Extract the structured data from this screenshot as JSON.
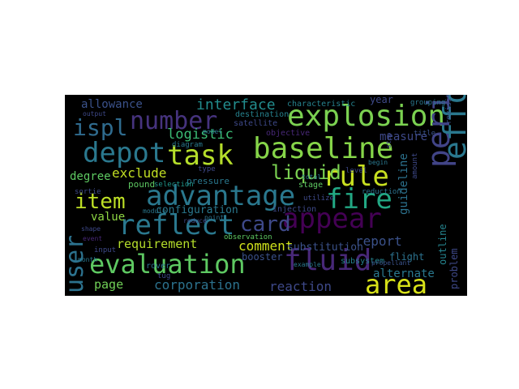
{
  "wordcloud": {
    "background": "#000000",
    "words": [
      {
        "text": "explosion",
        "color": "#7bd151"
      },
      {
        "text": "baseline",
        "color": "#86d549"
      },
      {
        "text": "depot",
        "color": "#2a788e"
      },
      {
        "text": "task",
        "color": "#b5de2b"
      },
      {
        "text": "period",
        "color": "#414487"
      },
      {
        "text": "effort",
        "color": "#2a788e"
      },
      {
        "text": "number",
        "color": "#46337e"
      },
      {
        "text": "ispl",
        "color": "#2f6b8e"
      },
      {
        "text": "rule",
        "color": "#c8e020"
      },
      {
        "text": "fire",
        "color": "#22a884"
      },
      {
        "text": "liquid",
        "color": "#7ad151"
      },
      {
        "text": "advantage",
        "color": "#2a788e"
      },
      {
        "text": "item",
        "color": "#bddf26"
      },
      {
        "text": "reflect",
        "color": "#2a788e"
      },
      {
        "text": "appear",
        "color": "#440154"
      },
      {
        "text": "card",
        "color": "#3e4989"
      },
      {
        "text": "evaluation",
        "color": "#5ec962"
      },
      {
        "text": "fluid",
        "color": "#482878"
      },
      {
        "text": "area",
        "color": "#d8e219"
      },
      {
        "text": "user",
        "color": "#2c728e"
      },
      {
        "text": "interface",
        "color": "#228c8d"
      },
      {
        "text": "allowance",
        "color": "#3b528b"
      },
      {
        "text": "logistic",
        "color": "#3bbb75"
      },
      {
        "text": "exclude",
        "color": "#c2df23"
      },
      {
        "text": "degree",
        "color": "#5ec962"
      },
      {
        "text": "configuration",
        "color": "#2a788e"
      },
      {
        "text": "value",
        "color": "#8fd744"
      },
      {
        "text": "requirement",
        "color": "#b5de2b"
      },
      {
        "text": "comment",
        "color": "#d0e11c"
      },
      {
        "text": "report",
        "color": "#3b528b"
      },
      {
        "text": "measure",
        "color": "#3e4989"
      },
      {
        "text": "guideline",
        "color": "#2c728e"
      },
      {
        "text": "page",
        "color": "#70cf57"
      },
      {
        "text": "corporation",
        "color": "#2c728e"
      },
      {
        "text": "reaction",
        "color": "#3e4989"
      },
      {
        "text": "alternate",
        "color": "#2a788e"
      },
      {
        "text": "substitution",
        "color": "#3b528b"
      },
      {
        "text": "problem",
        "color": "#3e4989"
      },
      {
        "text": "outline",
        "color": "#25848e"
      },
      {
        "text": "pound",
        "color": "#5ec962"
      },
      {
        "text": "year",
        "color": "#3e4989"
      },
      {
        "text": "characteristic",
        "color": "#26828e"
      },
      {
        "text": "destination",
        "color": "#26828e"
      },
      {
        "text": "satellite",
        "color": "#3e4989"
      },
      {
        "text": "objective",
        "color": "#482878"
      },
      {
        "text": "flight",
        "color": "#2c728e"
      },
      {
        "text": "booster",
        "color": "#3b528b"
      },
      {
        "text": "pressure",
        "color": "#2a788e"
      },
      {
        "text": "stage",
        "color": "#5ec962"
      },
      {
        "text": "injection",
        "color": "#3e4989"
      },
      {
        "text": "rover",
        "color": "#2c728e"
      },
      {
        "text": "tug",
        "color": "#3e4989"
      },
      {
        "text": "observation",
        "color": "#5ec962"
      },
      {
        "text": "grouping",
        "color": "#2a788e"
      },
      {
        "text": "revisit",
        "color": "#3b528b"
      },
      {
        "text": "diagram",
        "color": "#2a788e"
      },
      {
        "text": "selection",
        "color": "#1f988b"
      },
      {
        "text": "sortie",
        "color": "#3e4989"
      },
      {
        "text": "module",
        "color": "#2a788e"
      },
      {
        "text": "shape",
        "color": "#3e4989"
      },
      {
        "text": "event",
        "color": "#482878"
      },
      {
        "text": "input",
        "color": "#3e4989"
      },
      {
        "text": "month",
        "color": "#2a788e"
      },
      {
        "text": "subsystem",
        "color": "#26828e"
      },
      {
        "text": "amount",
        "color": "#3e4989"
      },
      {
        "text": "reduction",
        "color": "#2c728e"
      },
      {
        "text": "level",
        "color": "#3e4989"
      },
      {
        "text": "begin",
        "color": "#2a788e"
      },
      {
        "text": "title",
        "color": "#3b528b"
      },
      {
        "text": "output",
        "color": "#3e4989"
      },
      {
        "text": "type",
        "color": "#3e4989"
      },
      {
        "text": "model",
        "color": "#2c728e"
      },
      {
        "text": "example",
        "color": "#2a788e"
      },
      {
        "text": "utilize",
        "color": "#3e4989"
      },
      {
        "text": "point",
        "color": "#2c728e"
      },
      {
        "text": "reduce",
        "color": "#3e4989"
      },
      {
        "text": "total",
        "color": "#2a788e"
      },
      {
        "text": "step",
        "color": "#3e4989"
      },
      {
        "text": "propellant",
        "color": "#3b528b"
      }
    ]
  }
}
